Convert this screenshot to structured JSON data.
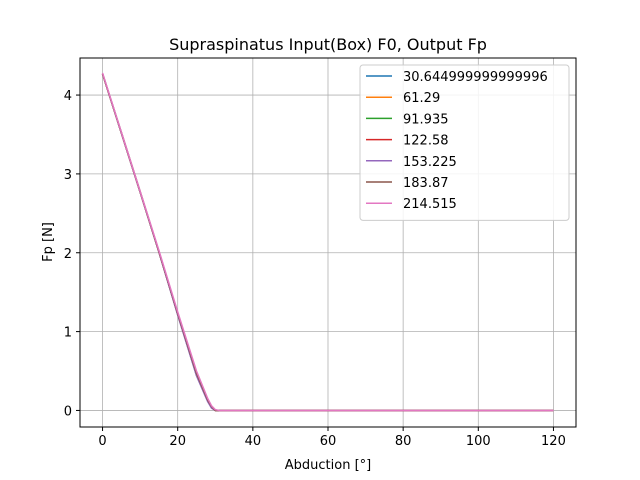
{
  "chart_data": {
    "type": "line",
    "title": "Supraspinatus Input(Box) F0, Output Fp",
    "xlabel": "Abduction [°]",
    "ylabel": "Fp [N]",
    "xlim": [
      -6,
      126
    ],
    "ylim": [
      -0.21,
      4.47
    ],
    "xticks": [
      0,
      20,
      40,
      60,
      80,
      100,
      120
    ],
    "yticks": [
      0,
      1,
      2,
      3,
      4
    ],
    "grid": true,
    "legend_position": "top-right",
    "x": [
      0,
      5,
      10,
      15,
      20,
      25,
      28,
      29,
      30,
      31,
      40,
      60,
      80,
      100,
      120
    ],
    "series": [
      {
        "name": "30.644999999999996",
        "color": "#1f77b4",
        "values": [
          4.27,
          3.52,
          2.77,
          2.01,
          1.22,
          0.45,
          0.12,
          0.04,
          0.0,
          0.0,
          0.0,
          0.0,
          0.0,
          0.0,
          0.0
        ]
      },
      {
        "name": "61.29",
        "color": "#ff7f0e",
        "values": [
          4.27,
          3.52,
          2.77,
          2.01,
          1.22,
          0.45,
          0.12,
          0.04,
          0.0,
          0.0,
          0.0,
          0.0,
          0.0,
          0.0,
          0.0
        ]
      },
      {
        "name": "91.935",
        "color": "#2ca02c",
        "values": [
          4.27,
          3.52,
          2.77,
          2.01,
          1.22,
          0.45,
          0.12,
          0.04,
          0.0,
          0.0,
          0.0,
          0.0,
          0.0,
          0.0,
          0.0
        ]
      },
      {
        "name": "122.58",
        "color": "#d62728",
        "values": [
          4.27,
          3.52,
          2.77,
          2.01,
          1.22,
          0.45,
          0.12,
          0.04,
          0.0,
          0.0,
          0.0,
          0.0,
          0.0,
          0.0,
          0.0
        ]
      },
      {
        "name": "153.225",
        "color": "#9467bd",
        "values": [
          4.27,
          3.52,
          2.77,
          2.01,
          1.21,
          0.44,
          0.11,
          0.03,
          0.0,
          0.0,
          0.0,
          0.0,
          0.0,
          0.0,
          0.0
        ]
      },
      {
        "name": "183.87",
        "color": "#8c564b",
        "values": [
          4.27,
          3.53,
          2.78,
          2.02,
          1.23,
          0.47,
          0.13,
          0.05,
          0.0,
          0.0,
          0.0,
          0.0,
          0.0,
          0.0,
          0.0
        ]
      },
      {
        "name": "214.515",
        "color": "#e377c2",
        "values": [
          4.28,
          3.53,
          2.78,
          2.03,
          1.25,
          0.5,
          0.15,
          0.06,
          0.01,
          0.0,
          0.0,
          0.0,
          0.0,
          0.0,
          0.0
        ]
      }
    ]
  }
}
